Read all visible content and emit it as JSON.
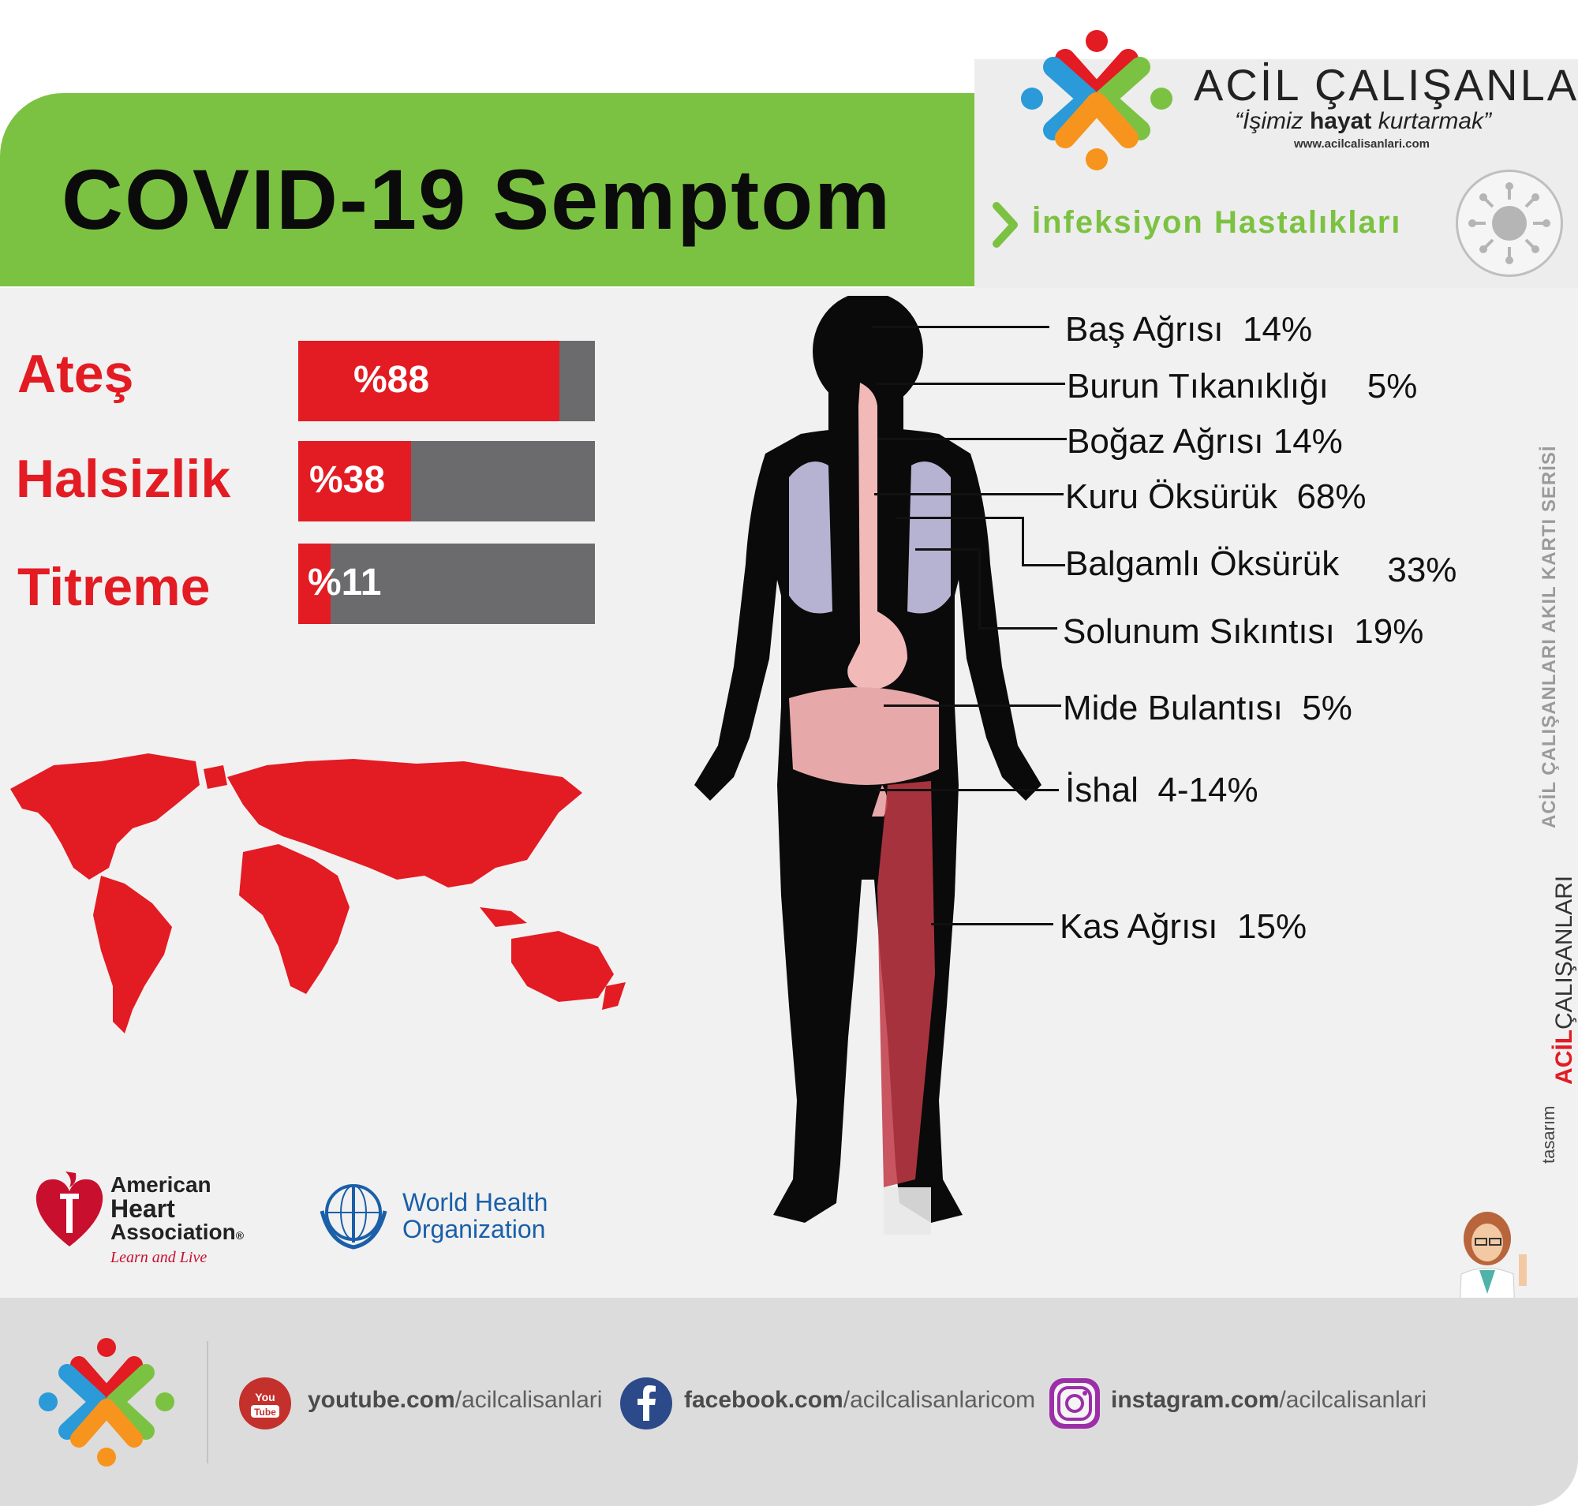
{
  "header": {
    "title": "COVID-19 Semptom",
    "brand_name": "ACİL ÇALIŞANLARI",
    "slogan_pre": "“İşimiz ",
    "slogan_bold": "hayat",
    "slogan_post": " kurtarmak”",
    "brand_url": "www.acilcalisanlari.com",
    "category": "İnfeksiyon Hastalıkları"
  },
  "bars": [
    {
      "label": "Ateş",
      "value_text": "%88",
      "value": 88
    },
    {
      "label": "Halsizlik",
      "value_text": "%38",
      "value": 38
    },
    {
      "label": "Titreme",
      "value_text": "%11",
      "value": 11
    }
  ],
  "symptoms": [
    {
      "name": "Baş Ağrısı",
      "pct": "14%"
    },
    {
      "name": "Burun Tıkanıklığı",
      "pct": "5%"
    },
    {
      "name": "Boğaz Ağrısı",
      "pct": "14%"
    },
    {
      "name": "Kuru Öksürük",
      "pct": "68%"
    },
    {
      "name": "Balgamlı Öksürük",
      "pct": "33%"
    },
    {
      "name": "Solunum Sıkıntısı",
      "pct": "19%"
    },
    {
      "name": "Mide Bulantısı",
      "pct": "5%"
    },
    {
      "name": "İshal",
      "pct": "4-14%"
    },
    {
      "name": "Kas Ağrısı",
      "pct": "15%"
    }
  ],
  "logos": {
    "aha_line1": "American",
    "aha_line2": "Heart",
    "aha_line3": "Association",
    "aha_reg": "®",
    "aha_tagline": "Learn and Live",
    "who_line1": "World Health",
    "who_line2": "Organization"
  },
  "social": {
    "youtube_bold": "youtube.com",
    "youtube_path": "/acilcalisanlari",
    "facebook_bold": "facebook.com",
    "facebook_path": "/acilcalisanlaricom",
    "instagram_bold": "instagram.com",
    "instagram_path": "/acilcalisanlari",
    "youtube_badge_1": "You",
    "youtube_badge_2": "Tube"
  },
  "side": {
    "series": "ACİL ÇALIŞANLARI AKIL KARTI SERİSİ",
    "brand_bold": "ACİL",
    "brand_rest": "ÇALIŞANLARI",
    "design": "tasarım"
  },
  "colors": {
    "red": "#e31b23",
    "green": "#7cc242",
    "gray_bar": "#6b6b6e"
  }
}
